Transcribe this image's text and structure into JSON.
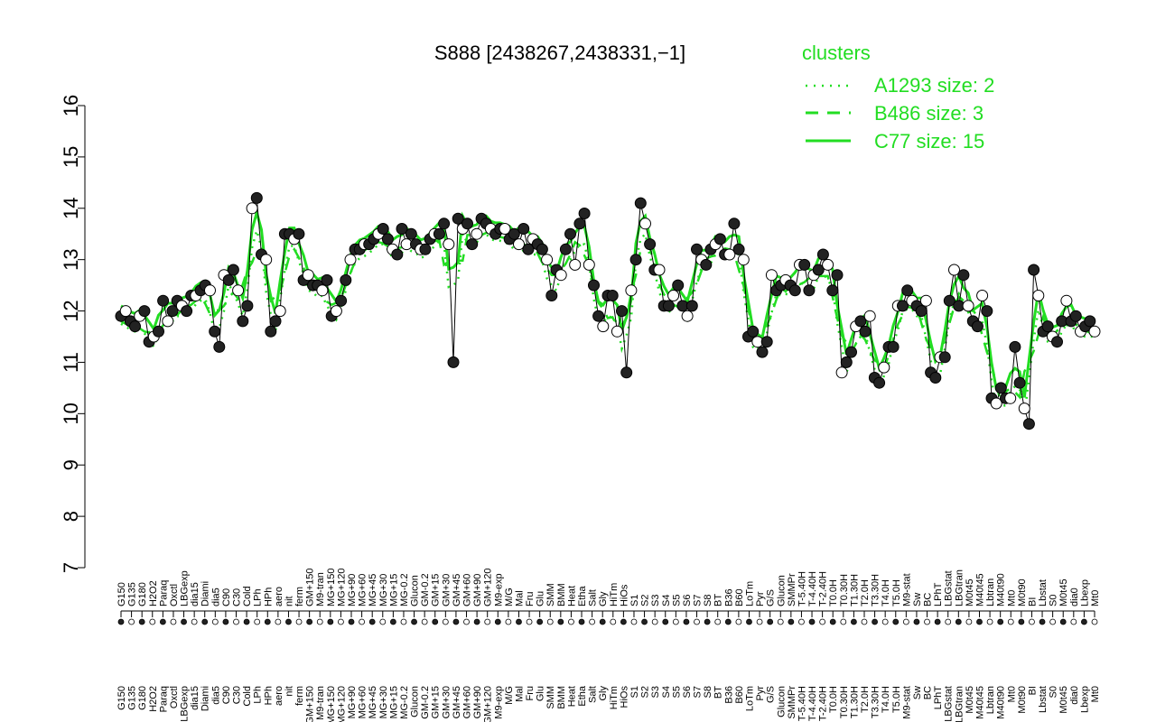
{
  "chart_data": {
    "type": "line",
    "title": "S888 [2438267,2438331,−1]",
    "xlabel": "",
    "ylabel": "",
    "ylim": [
      7,
      16
    ],
    "yticks": [
      7,
      8,
      9,
      10,
      11,
      12,
      13,
      14,
      15,
      16
    ],
    "grid": false,
    "legend": {
      "title": "clusters",
      "placement": "top-right",
      "entries": [
        {
          "label": "A1293 size: 2",
          "style": "dotted"
        },
        {
          "label": "B486 size: 3",
          "style": "dashed"
        },
        {
          "label": "C77 size: 15",
          "style": "solid"
        }
      ]
    },
    "colors": {
      "clusters": "#22dd22",
      "points": "#000000",
      "text": "#000000"
    },
    "x_tick_labels": [
      "G150",
      "G135",
      "G180",
      "H2O2",
      "Paraq",
      "Oxctl",
      "LBGexp",
      "dia15",
      "Diami",
      "dia5",
      "C90",
      "C30",
      "Cold",
      "LPh",
      "HPh",
      "aero",
      "nit",
      "ferm",
      "GM+150",
      "M9-tran",
      "MG+150",
      "MG+120",
      "MG+90",
      "MG+60",
      "MG+45",
      "MG+30",
      "MG+15",
      "MG-0.2",
      "Glucon",
      "GM-0.2",
      "GM+15",
      "GM+30",
      "GM+45",
      "GM+60",
      "GM+90",
      "GM+120",
      "M9-exp",
      "M/G",
      "Mal",
      "Fru",
      "Glu",
      "SMM",
      "BMM",
      "Heat",
      "Etha",
      "Salt",
      "Gly",
      "HiTm",
      "HiOs",
      "S1",
      "S2",
      "S3",
      "S4",
      "S5",
      "S6",
      "S7",
      "S8",
      "BT",
      "B36",
      "B60",
      "LoTm",
      "Pyr",
      "G/S",
      "Glucon",
      "SMMPr",
      "T-5.40H",
      "T-4.40H",
      "T-2.40H",
      "T0.0H",
      "T0.30H",
      "T1.30H",
      "T2.0H",
      "T3.30H",
      "T4.0H",
      "T5.0H",
      "M9-stat",
      "Sw",
      "BC",
      "LPhT",
      "LBGstat",
      "LBGtran",
      "M0t45",
      "M40t45",
      "Lbtran",
      "M40t90",
      "Mt0",
      "M0t90",
      "BI",
      "Lbstat",
      "S0",
      "M0t45",
      "dia0",
      "Lbexp",
      "Mt0"
    ],
    "series": [
      {
        "values": [
          11.9,
          12.0,
          11.8,
          11.7,
          11.9,
          12.0,
          11.4,
          11.5,
          11.6,
          12.2,
          11.8,
          12.0,
          12.2,
          12.1,
          12.0,
          12.3,
          12.3,
          12.4,
          12.5,
          12.4,
          11.6,
          11.3,
          12.7,
          12.6,
          12.8,
          12.4,
          11.8,
          12.1,
          14.0,
          14.2,
          13.1,
          13.0,
          11.6,
          11.8,
          12.0,
          13.5,
          13.5,
          13.4,
          13.5,
          12.6,
          12.7,
          12.5,
          12.5,
          12.4,
          12.6,
          11.9,
          12.0,
          12.2,
          12.6,
          13.0,
          13.2,
          13.2,
          13.3,
          13.3,
          13.4,
          13.5,
          13.6,
          13.4,
          13.2,
          13.1,
          13.6,
          13.3,
          13.5,
          13.3,
          13.2,
          13.2,
          13.4,
          13.5,
          13.5,
          13.7,
          13.3,
          11.0,
          13.8,
          13.6,
          13.7,
          13.3,
          13.5,
          13.8,
          13.7,
          13.6,
          13.5,
          13.6,
          13.6,
          13.4,
          13.5,
          13.3,
          13.6,
          13.2,
          13.4,
          13.3,
          13.2,
          13.0,
          12.3,
          12.8,
          12.7,
          13.2,
          13.5,
          12.9,
          13.7,
          13.9,
          12.9,
          12.5,
          11.9,
          11.7,
          12.3,
          12.3,
          11.6,
          12.0,
          10.8,
          12.4,
          13.0,
          14.1,
          13.7,
          13.3,
          12.8,
          12.8,
          12.1,
          12.1,
          12.3,
          12.5,
          12.1,
          11.9,
          12.1,
          13.2,
          13.0,
          12.9,
          13.2,
          13.3,
          13.4,
          13.1,
          13.1,
          13.7,
          13.2,
          13.0,
          11.5,
          11.6,
          11.4,
          11.2,
          11.4,
          12.7,
          12.4,
          12.5,
          12.6,
          12.5,
          12.4,
          12.9,
          12.9,
          12.4,
          12.7,
          12.8,
          13.1,
          12.9,
          12.4,
          12.7,
          10.8,
          11.0,
          11.2,
          11.7,
          11.8,
          11.6,
          11.9,
          10.7,
          10.6,
          10.9,
          11.3,
          11.3,
          12.1,
          12.1,
          12.4,
          12.2,
          12.1,
          12.0,
          12.2,
          10.8,
          10.7,
          11.1,
          11.1,
          12.2,
          12.8,
          12.1,
          12.7,
          12.1,
          11.8,
          11.7,
          12.3,
          12.0,
          10.3,
          10.2,
          10.5,
          10.3,
          10.3,
          11.3,
          10.6,
          10.1,
          9.8,
          12.8,
          12.3,
          11.6,
          11.7,
          11.5,
          11.4,
          11.8,
          12.2,
          11.8,
          11.9,
          11.6,
          11.7,
          11.8,
          11.6
        ]
      }
    ]
  }
}
